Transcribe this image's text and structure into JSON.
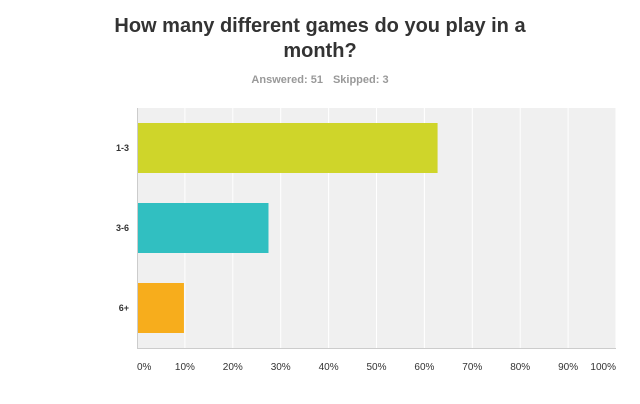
{
  "chart_data": {
    "type": "bar",
    "orientation": "horizontal",
    "title": "How many different games do you play in a month?",
    "subtitle": {
      "answered_label": "Answered: 51",
      "skipped_label": "Skipped: 3"
    },
    "categories": [
      "1-3",
      "3-6",
      "6+"
    ],
    "values": [
      62.75,
      27.45,
      9.8
    ],
    "bar_colors": [
      "#cfd52a",
      "#31bfc1",
      "#f7ad1c"
    ],
    "xlim": [
      0,
      100
    ],
    "xticks": [
      0,
      10,
      20,
      30,
      40,
      50,
      60,
      70,
      80,
      90,
      100
    ],
    "xtick_labels": [
      "0%",
      "10%",
      "20%",
      "30%",
      "40%",
      "50%",
      "60%",
      "70%",
      "80%",
      "90%",
      "100%"
    ],
    "grid": true,
    "plot_background": "#f0f0f0",
    "grid_color": "#ffffff"
  }
}
